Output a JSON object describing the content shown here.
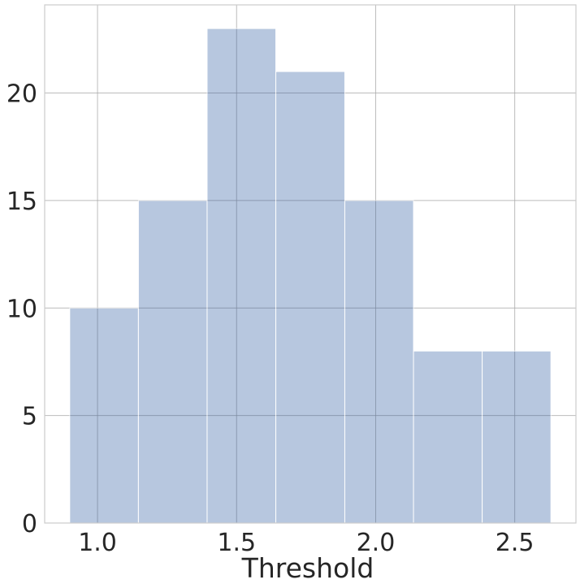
{
  "chart_data": {
    "type": "bar",
    "subtype": "histogram",
    "xlabel": "Threshold",
    "ylabel": "",
    "bin_edges": [
      0.9,
      1.147,
      1.394,
      1.641,
      1.889,
      2.136,
      2.383,
      2.63
    ],
    "values": [
      10,
      15,
      23,
      21,
      15,
      8,
      8
    ],
    "xlim": [
      0.81,
      2.72
    ],
    "ylim": [
      0,
      24.1
    ],
    "xticks": [
      1.0,
      1.5,
      2.0,
      2.5
    ],
    "xtick_labels": [
      "1.0",
      "1.5",
      "2.0",
      "2.5"
    ],
    "yticks": [
      0,
      5,
      10,
      15,
      20
    ],
    "ytick_labels": [
      "0",
      "5",
      "10",
      "15",
      "20"
    ],
    "bar_color": "#4c72b0",
    "bar_opacity": 0.4,
    "grid": true
  }
}
